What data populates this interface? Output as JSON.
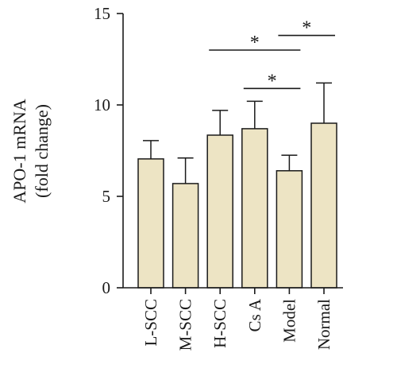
{
  "chart_data": {
    "type": "bar",
    "title": "",
    "xlabel": "",
    "ylabel_lines": [
      "APO-1 mRNA",
      "(fold change)"
    ],
    "ylim": [
      0,
      15
    ],
    "yticks": [
      "0",
      "5",
      "10",
      "15"
    ],
    "categories": [
      "L-SCC",
      "M-SCC",
      "H-SCC",
      "Cs A",
      "Model",
      "Normal"
    ],
    "values": [
      7.05,
      5.7,
      8.35,
      8.7,
      6.4,
      9.0
    ],
    "errors": [
      1.0,
      1.4,
      1.35,
      1.5,
      0.85,
      2.2
    ],
    "bar_color": "#ede4c4",
    "grid": false,
    "significance": [
      {
        "from": "H-SCC",
        "to": "Model",
        "label": "*"
      },
      {
        "from": "Cs A",
        "to": "Model",
        "label": "*"
      },
      {
        "from": "Model",
        "to": "Normal",
        "label": "*"
      }
    ]
  }
}
